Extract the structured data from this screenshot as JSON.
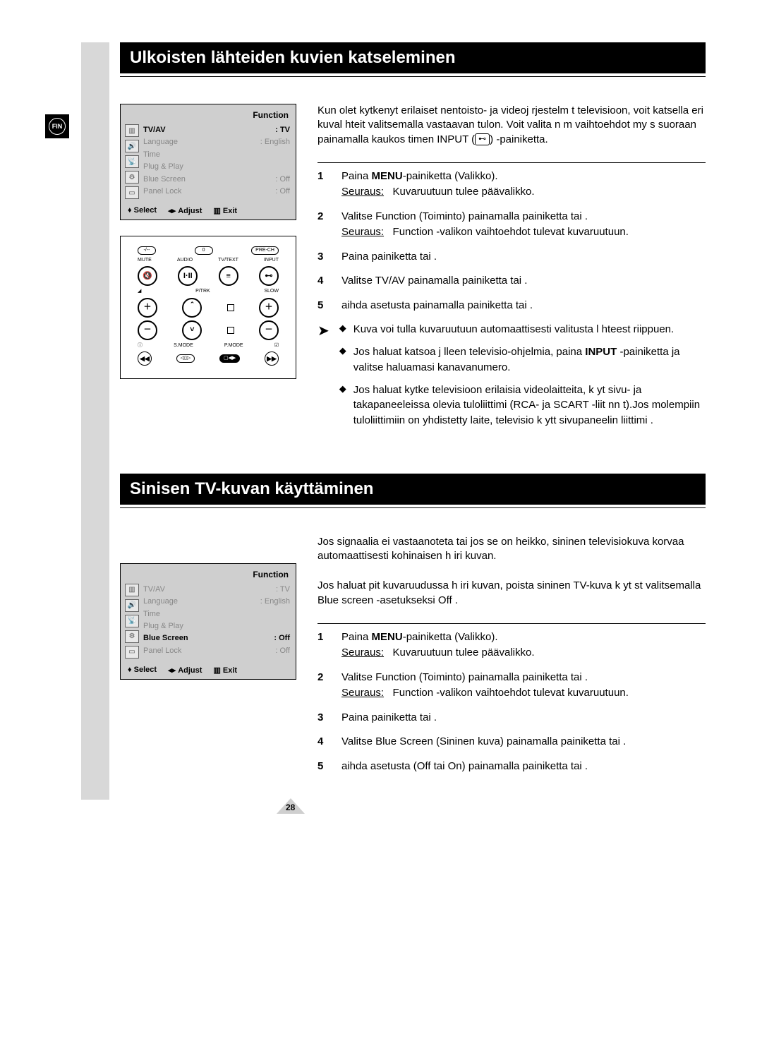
{
  "locale_badge": "FIN",
  "page_number": "28",
  "colors": {
    "vbar": "#d8d8d8",
    "osd_bg": "#cfcfcf",
    "text": "#000000",
    "dim": "#888888"
  },
  "section1": {
    "title": "Ulkoisten lähteiden kuvien katseleminen",
    "intro": "Kun olet kytkenyt erilaiset   nentoisto- ja videoj rjestelm t televisioon, voit katsella eri kuval hteit  valitsemalla vastaavan tulon. Voit  valita n m  vaihtoehdot my s suoraan painamalla kaukos timen INPUT  (",
    "intro_tail": ")  -painiketta.",
    "input_glyph": "⊷",
    "steps": [
      {
        "n": "1",
        "body_html": "Paina <b>MENU</b>-painiketta (Valikko).",
        "result_label": "Seuraus:",
        "result": "Kuvaruutuun tulee päävalikko."
      },
      {
        "n": "2",
        "body_html": "Valitse Function    (Toiminto) painamalla painiketta      tai   .",
        "result_label": "Seuraus:",
        "result": "Function   -valikon vaihtoehdot tulevat kuvaruutuun."
      },
      {
        "n": "3",
        "body_html": "Paina painiketta      tai   ."
      },
      {
        "n": "4",
        "body_html": "Valitse TV/AV painamalla painiketta      tai   ."
      },
      {
        "n": "5",
        "body_html": "aihda asetusta painamalla painiketta      tai   ."
      }
    ],
    "notes": [
      "Kuva voi tulla kuvaruutuun automaattisesti valitusta l hteest  riippuen.",
      "Jos haluat katsoa j lleen televisio-ohjelmia, paina <b>INPUT</b> -painiketta ja valitse haluamasi kanavanumero.",
      "Jos haluat kytke  televisioon erilaisia videolaitteita, k yt  sivu- ja takapaneeleissa olevia tuloliittimi (RCA- ja SCART -liit nn t).Jos molempiin tuloliittimiin on yhdistetty laite, televisio k ytt  sivupaneelin liittimi ."
    ],
    "osd": {
      "title": "Function",
      "rows": [
        {
          "label": "TV/AV",
          "value": ": TV",
          "active": true
        },
        {
          "label": "Language",
          "value": ": English",
          "active": false
        },
        {
          "label": "Time",
          "value": "",
          "active": false
        },
        {
          "label": "Plug & Play",
          "value": "",
          "active": false
        },
        {
          "label": "Blue Screen",
          "value": ": Off",
          "active": false
        },
        {
          "label": "Panel Lock",
          "value": ": Off",
          "active": false
        }
      ],
      "footer": {
        "select": "Select",
        "adjust": "Adjust",
        "exit": "Exit"
      }
    },
    "remote": {
      "top_pills": [
        "-/--",
        "0",
        "PRE-CH"
      ],
      "row1_labels": [
        "MUTE",
        "AUDIO",
        "TV/TEXT",
        "INPUT"
      ],
      "row1_btns": [
        "🔇",
        "I·II",
        "≡",
        "⊷"
      ],
      "row2_labels_left": "◢",
      "row2_labels_mid": "P/TRK",
      "row2_labels_right": "SLOW",
      "bottom_labels": [
        "ⓘ",
        "S.MODE",
        "P.MODE",
        "☑"
      ],
      "rewff": [
        "◀◀",
        "◁▯▷",
        "▢◀▶",
        "▶▶"
      ]
    }
  },
  "section2": {
    "title": "Sinisen TV-kuvan käyttäminen",
    "intro1": "Jos signaalia ei vastaanoteta tai jos se on heikko, sininen televisiokuva korvaa automaattisesti kohinaisen h iri kuvan.",
    "intro2": "Jos haluat pit   kuvaruudussa h iri kuvan, poista sininen TV-kuva k yt st  valitsemalla Blue screen -asetukseksi  Off .",
    "steps": [
      {
        "n": "1",
        "body_html": "Paina <b>MENU</b>-painiketta (Valikko).",
        "result_label": "Seuraus:",
        "result": "Kuvaruutuun tulee päävalikko."
      },
      {
        "n": "2",
        "body_html": "Valitse Function    (Toiminto) painamalla painiketta      tai    .",
        "result_label": "Seuraus:",
        "result": "Function   -valikon vaihtoehdot tulevat kuvaruutuun."
      },
      {
        "n": "3",
        "body_html": "Paina painiketta      tai    ."
      },
      {
        "n": "4",
        "body_html": "Valitse Blue Screen     (Sininen kuva) painamalla painiketta      tai  ."
      },
      {
        "n": "5",
        "body_html": "aihda asetusta (Off   tai On)  painamalla painiketta      tai    ."
      }
    ],
    "osd": {
      "title": "Function",
      "rows": [
        {
          "label": "TV/AV",
          "value": ": TV",
          "active": false
        },
        {
          "label": "Language",
          "value": ": English",
          "active": false
        },
        {
          "label": "Time",
          "value": "",
          "active": false
        },
        {
          "label": "Plug & Play",
          "value": "",
          "active": false
        },
        {
          "label": "Blue Screen",
          "value": ": Off",
          "active": true
        },
        {
          "label": "Panel Lock",
          "value": ": Off",
          "active": false
        }
      ],
      "footer": {
        "select": "Select",
        "adjust": "Adjust",
        "exit": "Exit"
      }
    }
  }
}
